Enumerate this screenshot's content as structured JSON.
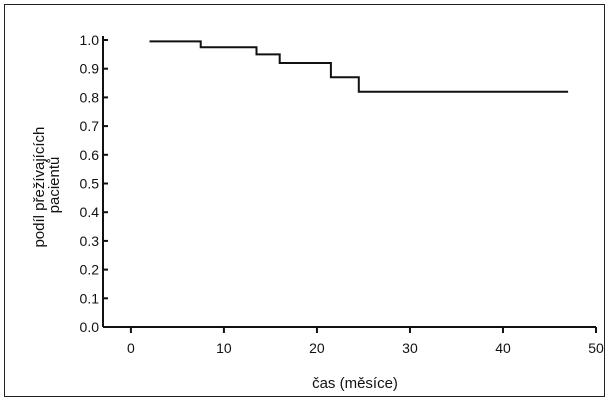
{
  "chart_data": {
    "type": "line",
    "step": true,
    "title": "",
    "xlabel": "čas (měsíce)",
    "ylabel_lines": [
      "podíl přežívajících",
      "pacientů"
    ],
    "xlim": [
      -3,
      50
    ],
    "ylim": [
      0,
      1.0
    ],
    "x_ticks": [
      0,
      10,
      20,
      30,
      40,
      50
    ],
    "y_ticks": [
      "0.0",
      "0.1",
      "0.2",
      "0.3",
      "0.4",
      "0.5",
      "0.6",
      "0.7",
      "0.8",
      "0.9",
      "1.0"
    ],
    "grid": false,
    "series": [
      {
        "points": [
          [
            2,
            0.995
          ],
          [
            7.5,
            0.995
          ],
          [
            7.5,
            0.975
          ],
          [
            13.5,
            0.975
          ],
          [
            13.5,
            0.95
          ],
          [
            16,
            0.95
          ],
          [
            16,
            0.92
          ],
          [
            21.5,
            0.92
          ],
          [
            21.5,
            0.87
          ],
          [
            24.5,
            0.87
          ],
          [
            24.5,
            0.82
          ],
          [
            47,
            0.82
          ]
        ]
      }
    ]
  },
  "colors": {
    "line": "#111111",
    "axis": "#111111"
  }
}
